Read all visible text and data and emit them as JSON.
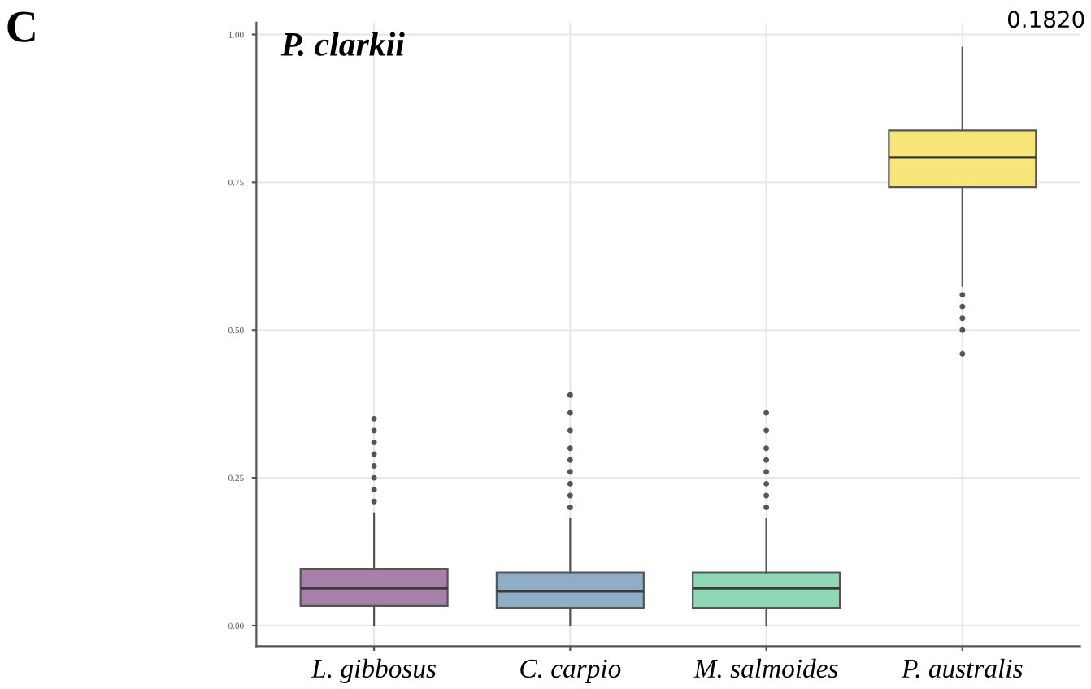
{
  "chart_data": {
    "type": "box",
    "title": "P. clarkii",
    "categories": [
      "L. gibbosus",
      "C. carpio",
      "M. salmoides",
      "P. australis"
    ],
    "boxes": [
      {
        "low": 0.0,
        "q1": 0.033,
        "median": 0.063,
        "q3": 0.096,
        "high": 0.19,
        "outliers": [
          0.21,
          0.23,
          0.25,
          0.27,
          0.29,
          0.31,
          0.33,
          0.35
        ]
      },
      {
        "low": 0.0,
        "q1": 0.03,
        "median": 0.058,
        "q3": 0.09,
        "high": 0.18,
        "outliers": [
          0.2,
          0.22,
          0.24,
          0.26,
          0.28,
          0.3,
          0.33,
          0.36,
          0.39
        ]
      },
      {
        "low": 0.0,
        "q1": 0.03,
        "median": 0.063,
        "q3": 0.09,
        "high": 0.18,
        "outliers": [
          0.2,
          0.22,
          0.24,
          0.26,
          0.28,
          0.3,
          0.33,
          0.36
        ]
      },
      {
        "low": 0.575,
        "q1": 0.742,
        "median": 0.792,
        "q3": 0.838,
        "high": 0.978,
        "outliers": [
          0.56,
          0.54,
          0.52,
          0.5,
          0.46
        ]
      }
    ],
    "colors": [
      "#a680a8",
      "#8fadc4",
      "#8ed8b5",
      "#f8e57a"
    ],
    "ylim": [
      -0.035,
      1.02
    ],
    "yticks": [
      {
        "value": 0,
        "label": "0.00"
      },
      0.25,
      {
        "value": 0.5,
        "label": "0.50"
      },
      0.75,
      {
        "value": 1,
        "label": "1.00"
      }
    ],
    "grid": true,
    "annotations": [
      "C",
      "0.1820"
    ]
  }
}
